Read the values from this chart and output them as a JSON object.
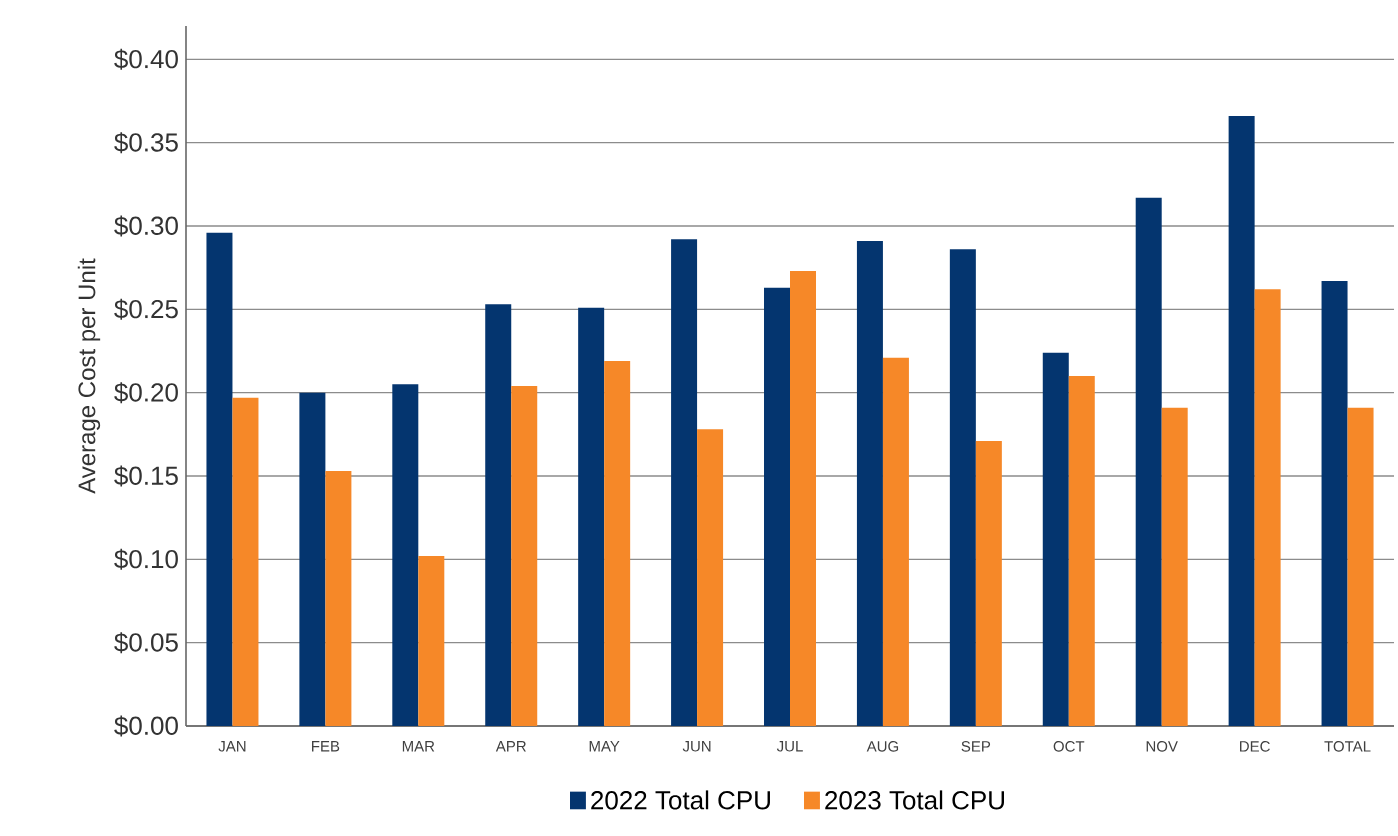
{
  "chart_data": {
    "type": "bar",
    "ylabel": "Average Cost per Unit",
    "categories": [
      "JAN",
      "FEB",
      "MAR",
      "APR",
      "MAY",
      "JUN",
      "JUL",
      "AUG",
      "SEP",
      "OCT",
      "NOV",
      "DEC",
      "TOTAL"
    ],
    "series": [
      {
        "name": "2022 Total CPU",
        "color": "#04356f",
        "values": [
          0.296,
          0.2,
          0.205,
          0.253,
          0.251,
          0.292,
          0.263,
          0.291,
          0.286,
          0.224,
          0.317,
          0.366,
          0.267
        ]
      },
      {
        "name": "2023 Total CPU",
        "color": "#f68828",
        "values": [
          0.197,
          0.153,
          0.102,
          0.204,
          0.219,
          0.178,
          0.273,
          0.221,
          0.171,
          0.21,
          0.191,
          0.262,
          0.191
        ]
      }
    ],
    "ylim": [
      0,
      0.42
    ],
    "yticks": [
      {
        "value": 0,
        "label": "$0.00"
      },
      {
        "value": 0.05,
        "label": "$0.05"
      },
      {
        "value": 0.1,
        "label": "$0.10"
      },
      {
        "value": 0.15,
        "label": "$0.15"
      },
      {
        "value": 0.2,
        "label": "$0.20"
      },
      {
        "value": 0.25,
        "label": "$0.25"
      },
      {
        "value": 0.3,
        "label": "$0.30"
      },
      {
        "value": 0.35,
        "label": "$0.35"
      },
      {
        "value": 0.4,
        "label": "$0.40"
      }
    ],
    "grid": "y",
    "legend": "bottom"
  }
}
